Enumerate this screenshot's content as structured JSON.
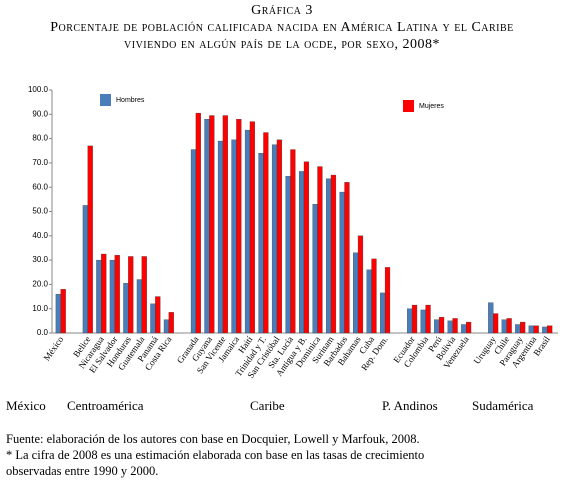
{
  "chart_data": {
    "type": "bar",
    "title": "Gráfica 3",
    "subtitle": [
      "Porcentaje de población calificada nacida en América Latina y el Caribe",
      "viviendo en algún país de la ocde, por sexo, 2008*"
    ],
    "categories": [
      "México",
      null,
      "Belice",
      "Nicaragua",
      "El Salvador",
      "Honduras",
      "Guatemala",
      "Panamá",
      "Costa Rica",
      null,
      "Granada",
      "Guyana",
      "San Vicente",
      "Jamaica",
      "Haití",
      "Trinidad y T.",
      "San Cristóbal",
      "Sta. Lucía",
      "Antigua y B.",
      "Dominica",
      "Surinam",
      "Barbados",
      "Bahamas",
      "Cuba",
      "Rep. Dom.",
      null,
      "Ecuador",
      "Colombia",
      "Perú",
      "Bolivia",
      "Venezuela",
      null,
      "Uruguay",
      "Chile",
      "Paraguay",
      "Argentina",
      "Brasil"
    ],
    "series": [
      {
        "name": "Hombres",
        "color": "#4a7ebb",
        "values": [
          16,
          null,
          52.5,
          30,
          30,
          20.5,
          22,
          12,
          5.5,
          null,
          75.5,
          88,
          79,
          79.5,
          83.5,
          74,
          77.5,
          64.5,
          66.5,
          53,
          63.5,
          58,
          33,
          26,
          16.5,
          null,
          10,
          9.5,
          5.5,
          5,
          3.5,
          null,
          12.5,
          5.5,
          3.5,
          3,
          2.5
        ]
      },
      {
        "name": "Mujeres",
        "color": "#ff0000",
        "values": [
          18,
          null,
          77,
          32.5,
          32,
          31.5,
          31.5,
          15,
          8.5,
          null,
          90.5,
          89.5,
          89.5,
          88,
          87,
          82.5,
          79.5,
          75.5,
          70.5,
          68.5,
          65,
          62,
          40,
          30.5,
          27,
          null,
          11.5,
          11.5,
          6.5,
          6,
          4.5,
          null,
          8,
          6,
          4.5,
          3,
          3
        ]
      }
    ],
    "groups": [
      "México",
      "Centroamérica",
      "Caribe",
      "P. Andinos",
      "Sudamérica"
    ],
    "ylim": [
      0,
      100
    ],
    "yticks": [
      {
        "value": 0,
        "label": "0.0"
      },
      {
        "value": 10,
        "label": "10.0"
      },
      {
        "value": 20,
        "label": "20.0"
      },
      {
        "value": 30,
        "label": "30.0"
      },
      {
        "value": 40,
        "label": "40.0"
      },
      {
        "value": 50,
        "label": "50.0"
      },
      {
        "value": 60,
        "label": "60.0"
      },
      {
        "value": 70,
        "label": "70.0"
      },
      {
        "value": 80,
        "label": "80.0"
      },
      {
        "value": 90,
        "label": "90.0"
      },
      {
        "value": 100,
        "label": "100.0"
      }
    ],
    "grid": false,
    "notes": [
      "Fuente: elaboración de los autores con base en Docquier, Lowell y Marfouk, 2008.",
      "* La cifra de 2008 es una estimación elaborada con base en las tasas de crecimiento",
      "observadas entre 1990 y 2000."
    ]
  }
}
